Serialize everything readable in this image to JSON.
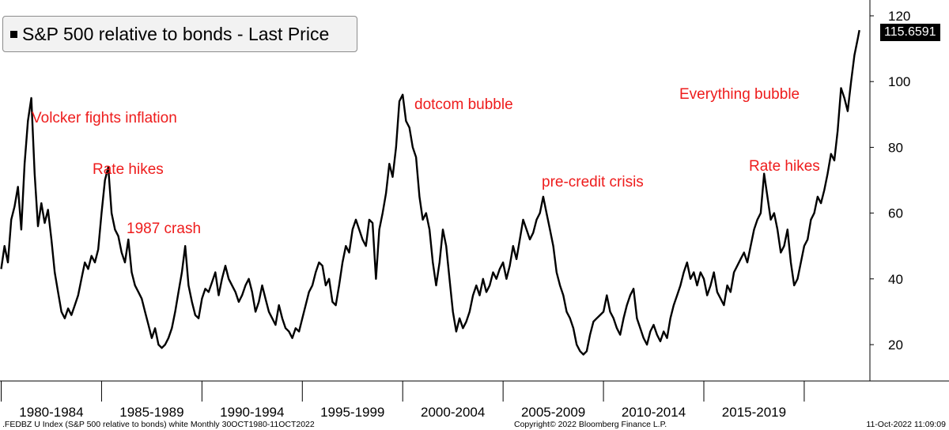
{
  "chart_data": {
    "type": "line",
    "legend": {
      "label": "S&P 500 relative to bonds - Last Price",
      "placement": "top-left"
    },
    "last_value_label": "115.6591",
    "y_axis": {
      "side": "right",
      "range": [
        10,
        120
      ],
      "ticks": [
        20,
        40,
        60,
        80,
        100,
        120
      ]
    },
    "x_axis": {
      "range": [
        "1979-10",
        "2023-02"
      ],
      "period_labels": [
        "1980-1984",
        "1985-1989",
        "1990-1994",
        "1995-1999",
        "2000-2004",
        "2005-2009",
        "2010-2014",
        "2015-2019"
      ],
      "period_starts": [
        "1980-01",
        "1985-01",
        "1990-01",
        "1995-01",
        "2000-01",
        "2005-01",
        "2010-01",
        "2015-01",
        "2020-01"
      ]
    },
    "grid": {
      "horizontal": false,
      "vertical": false
    },
    "series": [
      {
        "color": "#000000",
        "points": [
          [
            "1980-01",
            43
          ],
          [
            "1980-03",
            50
          ],
          [
            "1980-05",
            45
          ],
          [
            "1980-07",
            58
          ],
          [
            "1980-09",
            62
          ],
          [
            "1980-11",
            68
          ],
          [
            "1981-01",
            55
          ],
          [
            "1981-03",
            75
          ],
          [
            "1981-05",
            88
          ],
          [
            "1981-07",
            95
          ],
          [
            "1981-09",
            72
          ],
          [
            "1981-11",
            56
          ],
          [
            "1982-01",
            63
          ],
          [
            "1982-03",
            57
          ],
          [
            "1982-05",
            61
          ],
          [
            "1982-07",
            52
          ],
          [
            "1982-09",
            42
          ],
          [
            "1982-11",
            36
          ],
          [
            "1983-01",
            30
          ],
          [
            "1983-03",
            28
          ],
          [
            "1983-05",
            31
          ],
          [
            "1983-07",
            29
          ],
          [
            "1983-09",
            32
          ],
          [
            "1983-11",
            35
          ],
          [
            "1984-01",
            40
          ],
          [
            "1984-03",
            45
          ],
          [
            "1984-05",
            43
          ],
          [
            "1984-07",
            47
          ],
          [
            "1984-09",
            45
          ],
          [
            "1984-11",
            49
          ],
          [
            "1985-01",
            60
          ],
          [
            "1985-03",
            70
          ],
          [
            "1985-05",
            74
          ],
          [
            "1985-07",
            60
          ],
          [
            "1985-09",
            55
          ],
          [
            "1985-11",
            53
          ],
          [
            "1986-01",
            48
          ],
          [
            "1986-03",
            45
          ],
          [
            "1986-05",
            52
          ],
          [
            "1986-07",
            42
          ],
          [
            "1986-09",
            38
          ],
          [
            "1986-11",
            36
          ],
          [
            "1987-01",
            34
          ],
          [
            "1987-03",
            30
          ],
          [
            "1987-05",
            26
          ],
          [
            "1987-07",
            22
          ],
          [
            "1987-09",
            25
          ],
          [
            "1987-11",
            20
          ],
          [
            "1988-01",
            19
          ],
          [
            "1988-03",
            20
          ],
          [
            "1988-05",
            22
          ],
          [
            "1988-07",
            25
          ],
          [
            "1988-09",
            30
          ],
          [
            "1988-11",
            36
          ],
          [
            "1989-01",
            42
          ],
          [
            "1989-03",
            50
          ],
          [
            "1989-05",
            38
          ],
          [
            "1989-07",
            33
          ],
          [
            "1989-09",
            29
          ],
          [
            "1989-11",
            28
          ],
          [
            "1990-01",
            34
          ],
          [
            "1990-03",
            37
          ],
          [
            "1990-05",
            36
          ],
          [
            "1990-07",
            39
          ],
          [
            "1990-09",
            42
          ],
          [
            "1990-11",
            35
          ],
          [
            "1991-01",
            40
          ],
          [
            "1991-03",
            44
          ],
          [
            "1991-05",
            40
          ],
          [
            "1991-07",
            38
          ],
          [
            "1991-09",
            36
          ],
          [
            "1991-11",
            33
          ],
          [
            "1992-01",
            35
          ],
          [
            "1992-03",
            38
          ],
          [
            "1992-05",
            40
          ],
          [
            "1992-07",
            36
          ],
          [
            "1992-09",
            30
          ],
          [
            "1992-11",
            33
          ],
          [
            "1993-01",
            38
          ],
          [
            "1993-03",
            34
          ],
          [
            "1993-05",
            30
          ],
          [
            "1993-07",
            28
          ],
          [
            "1993-09",
            26
          ],
          [
            "1993-11",
            32
          ],
          [
            "1994-01",
            28
          ],
          [
            "1994-03",
            25
          ],
          [
            "1994-05",
            24
          ],
          [
            "1994-07",
            22
          ],
          [
            "1994-09",
            25
          ],
          [
            "1994-11",
            24
          ],
          [
            "1995-01",
            28
          ],
          [
            "1995-03",
            32
          ],
          [
            "1995-05",
            36
          ],
          [
            "1995-07",
            38
          ],
          [
            "1995-09",
            42
          ],
          [
            "1995-11",
            45
          ],
          [
            "1996-01",
            44
          ],
          [
            "1996-03",
            38
          ],
          [
            "1996-05",
            40
          ],
          [
            "1996-07",
            33
          ],
          [
            "1996-09",
            32
          ],
          [
            "1996-11",
            38
          ],
          [
            "1997-01",
            45
          ],
          [
            "1997-03",
            50
          ],
          [
            "1997-05",
            48
          ],
          [
            "1997-07",
            55
          ],
          [
            "1997-09",
            58
          ],
          [
            "1997-11",
            55
          ],
          [
            "1998-01",
            52
          ],
          [
            "1998-03",
            50
          ],
          [
            "1998-05",
            58
          ],
          [
            "1998-07",
            57
          ],
          [
            "1998-09",
            40
          ],
          [
            "1998-11",
            55
          ],
          [
            "1999-01",
            60
          ],
          [
            "1999-03",
            66
          ],
          [
            "1999-05",
            75
          ],
          [
            "1999-07",
            71
          ],
          [
            "1999-09",
            80
          ],
          [
            "1999-11",
            94
          ],
          [
            "2000-01",
            96
          ],
          [
            "2000-03",
            88
          ],
          [
            "2000-05",
            86
          ],
          [
            "2000-07",
            80
          ],
          [
            "2000-09",
            77
          ],
          [
            "2000-11",
            65
          ],
          [
            "2001-01",
            58
          ],
          [
            "2001-03",
            60
          ],
          [
            "2001-05",
            55
          ],
          [
            "2001-07",
            45
          ],
          [
            "2001-09",
            38
          ],
          [
            "2001-11",
            45
          ],
          [
            "2002-01",
            55
          ],
          [
            "2002-03",
            50
          ],
          [
            "2002-05",
            40
          ],
          [
            "2002-07",
            30
          ],
          [
            "2002-09",
            24
          ],
          [
            "2002-11",
            28
          ],
          [
            "2003-01",
            25
          ],
          [
            "2003-03",
            27
          ],
          [
            "2003-05",
            30
          ],
          [
            "2003-07",
            35
          ],
          [
            "2003-09",
            38
          ],
          [
            "2003-11",
            35
          ],
          [
            "2004-01",
            40
          ],
          [
            "2004-03",
            36
          ],
          [
            "2004-05",
            38
          ],
          [
            "2004-07",
            42
          ],
          [
            "2004-09",
            40
          ],
          [
            "2004-11",
            43
          ],
          [
            "2005-01",
            45
          ],
          [
            "2005-03",
            40
          ],
          [
            "2005-05",
            44
          ],
          [
            "2005-07",
            50
          ],
          [
            "2005-09",
            46
          ],
          [
            "2005-11",
            52
          ],
          [
            "2006-01",
            58
          ],
          [
            "2006-03",
            55
          ],
          [
            "2006-05",
            52
          ],
          [
            "2006-07",
            54
          ],
          [
            "2006-09",
            58
          ],
          [
            "2006-11",
            60
          ],
          [
            "2007-01",
            65
          ],
          [
            "2007-03",
            60
          ],
          [
            "2007-05",
            55
          ],
          [
            "2007-07",
            50
          ],
          [
            "2007-09",
            42
          ],
          [
            "2007-11",
            38
          ],
          [
            "2008-01",
            35
          ],
          [
            "2008-03",
            30
          ],
          [
            "2008-05",
            28
          ],
          [
            "2008-07",
            25
          ],
          [
            "2008-09",
            20
          ],
          [
            "2008-11",
            18
          ],
          [
            "2009-01",
            17
          ],
          [
            "2009-03",
            18
          ],
          [
            "2009-05",
            23
          ],
          [
            "2009-07",
            27
          ],
          [
            "2009-09",
            28
          ],
          [
            "2009-11",
            29
          ],
          [
            "2010-01",
            30
          ],
          [
            "2010-03",
            35
          ],
          [
            "2010-05",
            30
          ],
          [
            "2010-07",
            28
          ],
          [
            "2010-09",
            25
          ],
          [
            "2010-11",
            23
          ],
          [
            "2011-01",
            28
          ],
          [
            "2011-03",
            32
          ],
          [
            "2011-05",
            35
          ],
          [
            "2011-07",
            37
          ],
          [
            "2011-09",
            28
          ],
          [
            "2011-11",
            25
          ],
          [
            "2012-01",
            22
          ],
          [
            "2012-03",
            20
          ],
          [
            "2012-05",
            24
          ],
          [
            "2012-07",
            26
          ],
          [
            "2012-09",
            23
          ],
          [
            "2012-11",
            21
          ],
          [
            "2013-01",
            24
          ],
          [
            "2013-03",
            22
          ],
          [
            "2013-05",
            28
          ],
          [
            "2013-07",
            32
          ],
          [
            "2013-09",
            35
          ],
          [
            "2013-11",
            38
          ],
          [
            "2014-01",
            42
          ],
          [
            "2014-03",
            45
          ],
          [
            "2014-05",
            40
          ],
          [
            "2014-07",
            42
          ],
          [
            "2014-09",
            38
          ],
          [
            "2014-11",
            42
          ],
          [
            "2015-01",
            40
          ],
          [
            "2015-03",
            35
          ],
          [
            "2015-05",
            38
          ],
          [
            "2015-07",
            42
          ],
          [
            "2015-09",
            36
          ],
          [
            "2015-11",
            34
          ],
          [
            "2016-01",
            32
          ],
          [
            "2016-03",
            38
          ],
          [
            "2016-05",
            36
          ],
          [
            "2016-07",
            42
          ],
          [
            "2016-09",
            44
          ],
          [
            "2016-11",
            46
          ],
          [
            "2017-01",
            48
          ],
          [
            "2017-03",
            45
          ],
          [
            "2017-05",
            50
          ],
          [
            "2017-07",
            55
          ],
          [
            "2017-09",
            58
          ],
          [
            "2017-11",
            60
          ],
          [
            "2018-01",
            72
          ],
          [
            "2018-03",
            65
          ],
          [
            "2018-05",
            58
          ],
          [
            "2018-07",
            60
          ],
          [
            "2018-09",
            55
          ],
          [
            "2018-11",
            48
          ],
          [
            "2019-01",
            50
          ],
          [
            "2019-03",
            55
          ],
          [
            "2019-05",
            45
          ],
          [
            "2019-07",
            38
          ],
          [
            "2019-09",
            40
          ],
          [
            "2019-11",
            45
          ],
          [
            "2020-01",
            50
          ],
          [
            "2020-03",
            52
          ],
          [
            "2020-05",
            58
          ],
          [
            "2020-07",
            60
          ],
          [
            "2020-09",
            65
          ],
          [
            "2020-11",
            63
          ],
          [
            "2021-01",
            67
          ],
          [
            "2021-03",
            72
          ],
          [
            "2021-05",
            78
          ],
          [
            "2021-07",
            76
          ],
          [
            "2021-09",
            85
          ],
          [
            "2021-11",
            98
          ],
          [
            "2022-01",
            95
          ],
          [
            "2022-03",
            91
          ],
          [
            "2022-05",
            100
          ],
          [
            "2022-07",
            108
          ],
          [
            "2022-09",
            113
          ],
          [
            "2022-10",
            115.6591
          ]
        ]
      }
    ],
    "annotations": [
      "Volcker fights inflation",
      "Rate hikes",
      "1987 crash",
      "dotcom bubble",
      "pre-credit crisis",
      "Everything bubble",
      "Rate hikes"
    ]
  },
  "footer": {
    "left": ".FEDBZ U Index (S&P 500 relative to bonds) white  Monthly 30OCT1980-11OCT2022",
    "center": "Copyright© 2022 Bloomberg Finance L.P.",
    "right": "11-Oct-2022 11:09:09"
  }
}
